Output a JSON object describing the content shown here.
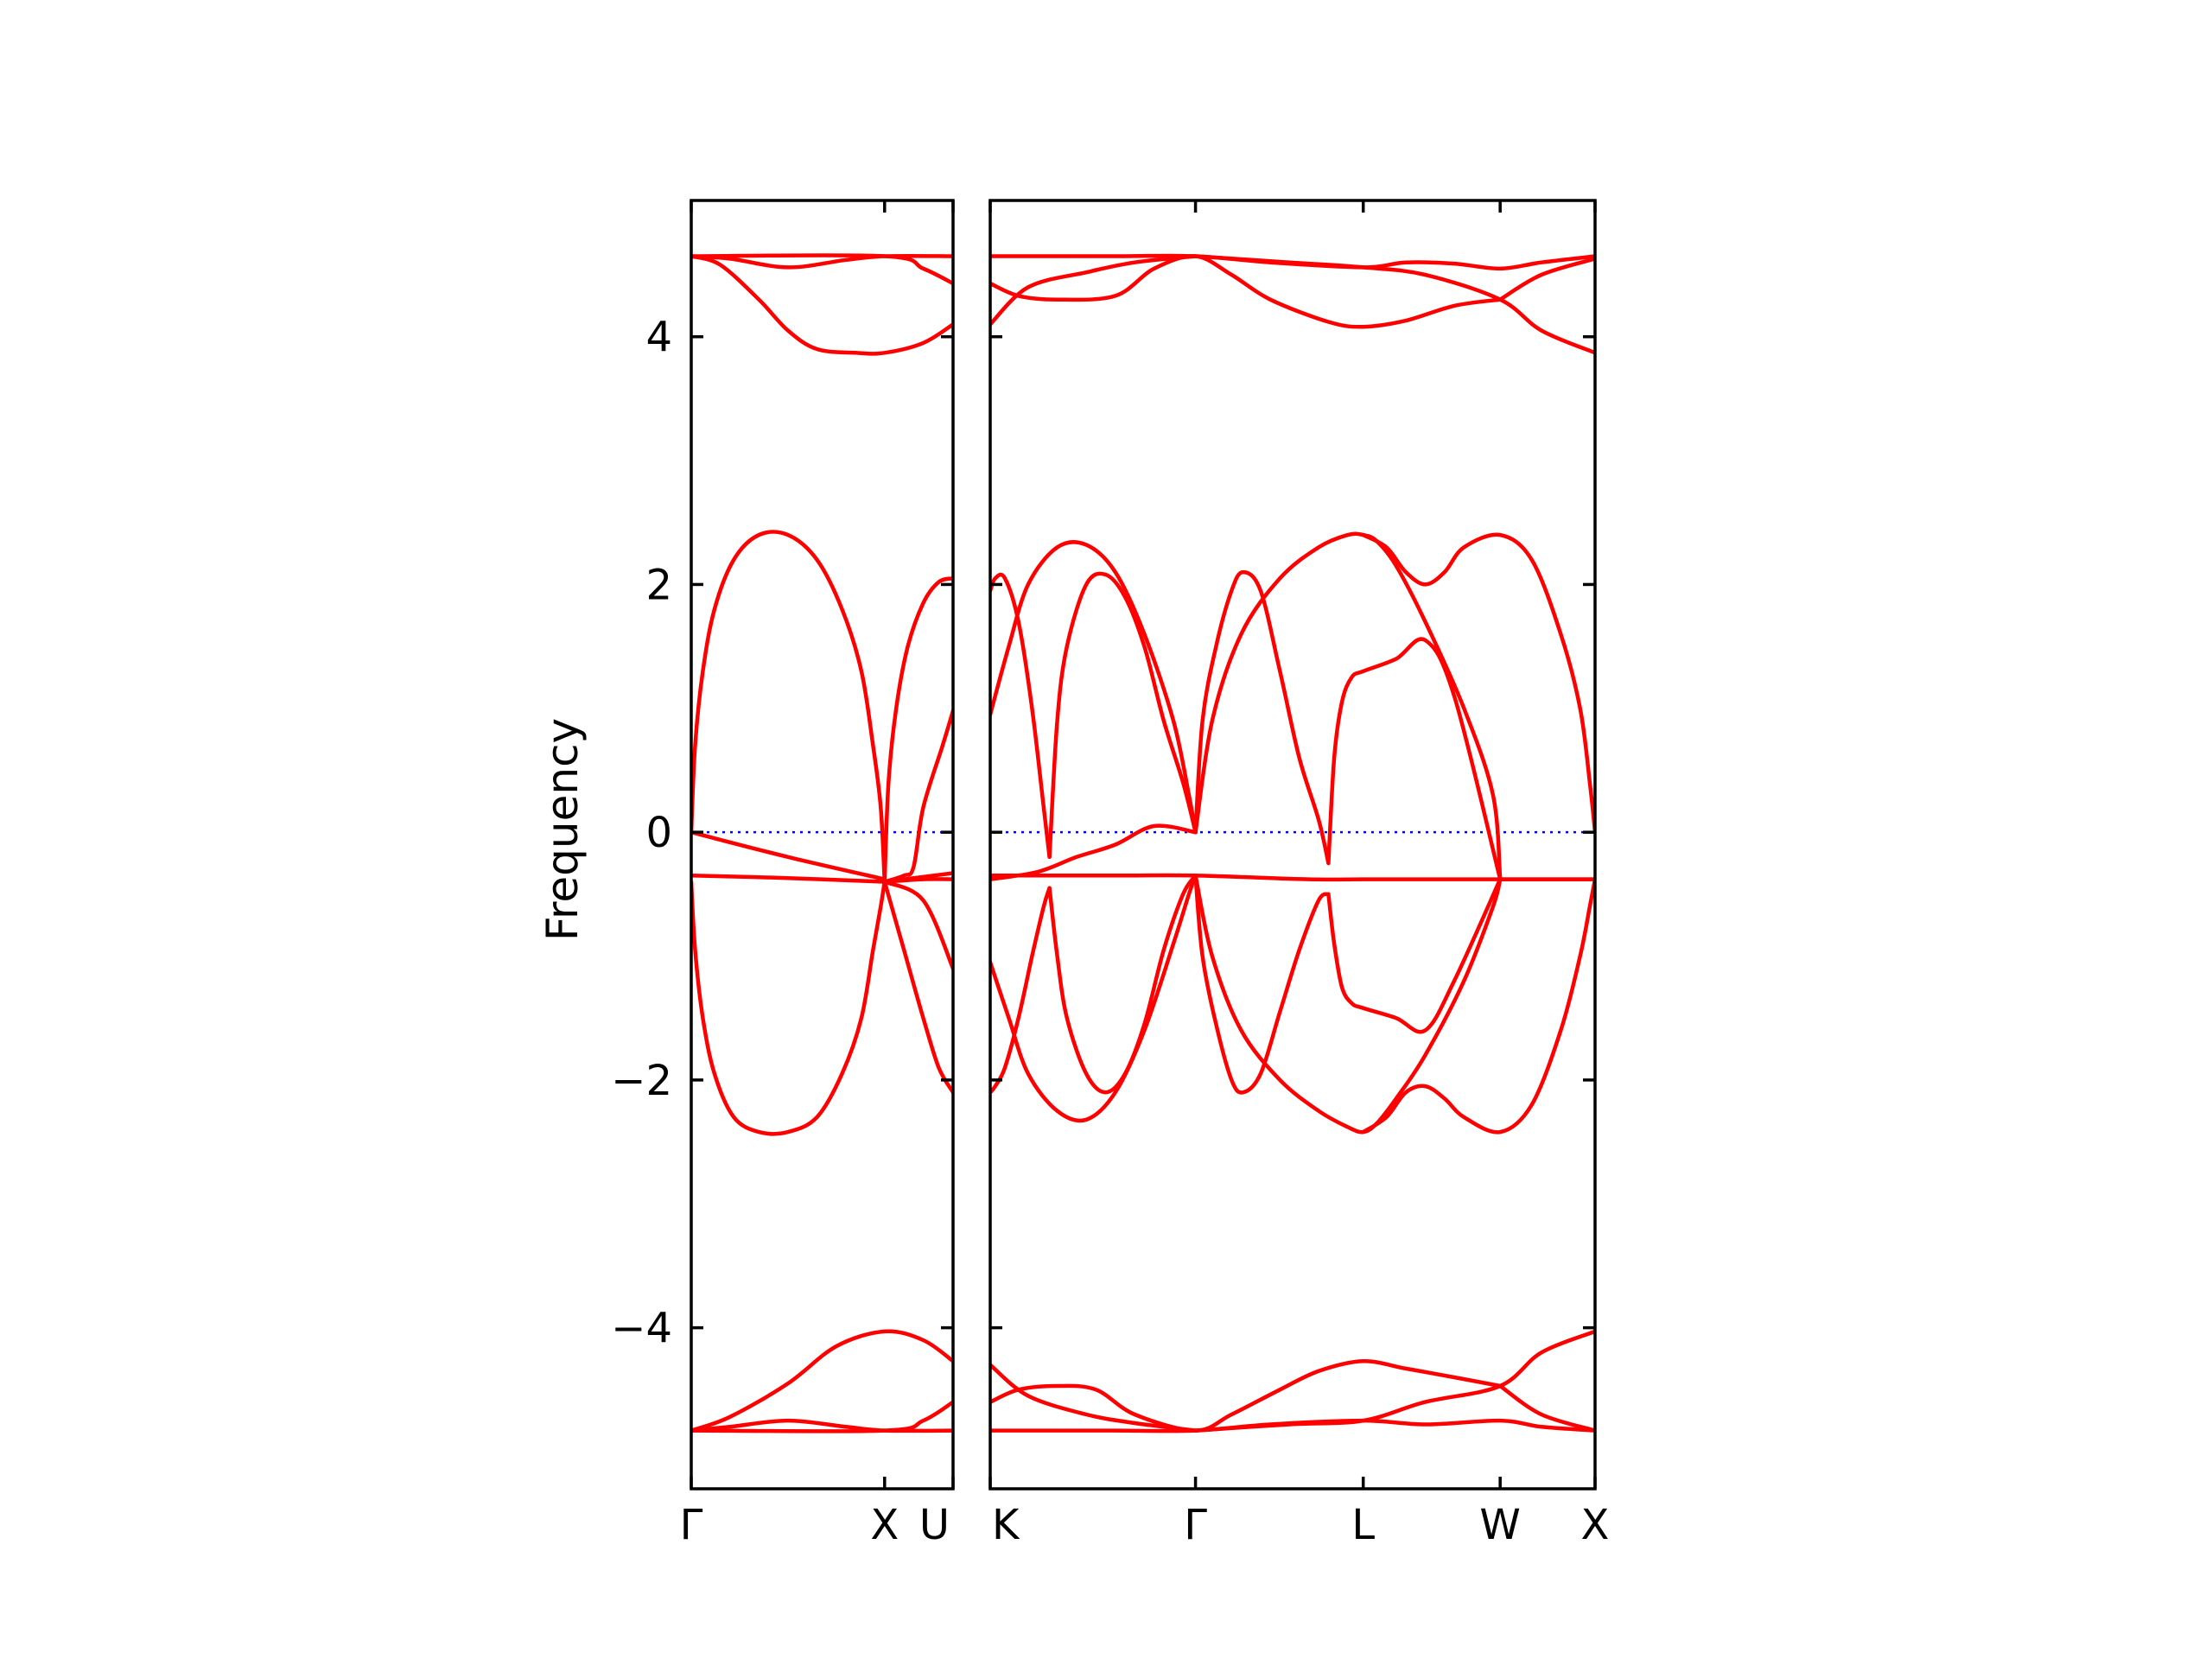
{
  "colors": {
    "band": "#ff0000",
    "zero_line": "#0000ff",
    "axes": "#000000"
  },
  "chart_data": {
    "type": "line",
    "title": "",
    "xlabel": "",
    "ylabel": "Frequency",
    "ylim": [
      -5.3,
      5.1
    ],
    "yticks": [
      -4,
      -2,
      0,
      2,
      4
    ],
    "ytick_labels": [
      "−4",
      "−2",
      "0",
      "2",
      "4"
    ],
    "grid": false,
    "zero_line": {
      "y": 0,
      "style": "dotted"
    },
    "panels": [
      {
        "name": "left",
        "x_range": [
          0,
          1.354
        ],
        "high_symmetry_points": [
          {
            "label": "Γ",
            "x": 0
          },
          {
            "label": "X",
            "x": 1.0
          },
          {
            "label": "U",
            "x": 1.354
          }
        ],
        "bands": [
          {
            "x": [
              0,
              0.2,
              0.5,
              0.8,
              1.0,
              1.354
            ],
            "y": [
              4.65,
              4.63,
              4.56,
              4.62,
              4.65,
              4.65
            ]
          },
          {
            "x": [
              0,
              0.15,
              0.35,
              0.5,
              0.65,
              0.85,
              1.0,
              1.2,
              1.354
            ],
            "y": [
              4.65,
              4.58,
              4.3,
              4.05,
              3.9,
              3.87,
              3.87,
              3.95,
              4.1
            ]
          },
          {
            "x": [
              0,
              1.0,
              1.2,
              1.354
            ],
            "y": [
              4.65,
              4.65,
              4.55,
              4.43
            ]
          },
          {
            "x": [
              0,
              0.02,
              0.06,
              0.12,
              0.22,
              0.35,
              0.5,
              0.65,
              0.78,
              0.88,
              0.94,
              0.98,
              1.0
            ],
            "y": [
              0,
              0.7,
              1.3,
              1.8,
              2.2,
              2.4,
              2.4,
              2.2,
              1.8,
              1.3,
              0.7,
              0.2,
              -0.4
            ]
          },
          {
            "x": [
              0,
              0.02,
              0.06,
              0.12,
              0.22,
              0.35,
              0.5,
              0.65,
              0.78,
              0.88,
              0.94,
              0.98,
              1.0
            ],
            "y": [
              -0.4,
              -0.95,
              -1.5,
              -1.95,
              -2.3,
              -2.42,
              -2.42,
              -2.3,
              -1.95,
              -1.5,
              -0.95,
              -0.6,
              -0.4
            ]
          },
          {
            "x": [
              0,
              0.5,
              1.0
            ],
            "y": [
              -0.35,
              -0.37,
              -0.4
            ]
          },
          {
            "x": [
              0,
              0.5,
              1.0
            ],
            "y": [
              0,
              -0.2,
              -0.38
            ]
          },
          {
            "x": [
              1.0,
              1.02,
              1.06,
              1.12,
              1.2,
              1.28,
              1.354
            ],
            "y": [
              -0.4,
              0.4,
              1.0,
              1.5,
              1.85,
              2.02,
              2.05
            ]
          },
          {
            "x": [
              1.0,
              1.1,
              1.2,
              1.28,
              1.354
            ],
            "y": [
              -0.4,
              -0.95,
              -1.5,
              -1.9,
              -2.1
            ]
          },
          {
            "x": [
              1.0,
              1.1,
              1.15,
              1.2,
              1.3,
              1.354
            ],
            "y": [
              -0.4,
              -0.35,
              -0.28,
              0.2,
              0.7,
              0.98
            ]
          },
          {
            "x": [
              1.0,
              1.2,
              1.354
            ],
            "y": [
              -0.4,
              -0.55,
              -1.1
            ]
          },
          {
            "x": [
              1.0,
              1.2,
              1.354
            ],
            "y": [
              -0.4,
              -0.36,
              -0.33
            ]
          },
          {
            "x": [
              1.0,
              1.2,
              1.354
            ],
            "y": [
              -0.4,
              -0.38,
              -0.38
            ]
          },
          {
            "x": [
              0,
              0.2,
              0.5,
              0.8,
              1.0,
              1.354
            ],
            "y": [
              -4.83,
              -4.8,
              -4.75,
              -4.8,
              -4.83,
              -4.83
            ]
          },
          {
            "x": [
              0,
              0.2,
              0.5,
              0.75,
              1.0,
              1.2,
              1.354
            ],
            "y": [
              -4.83,
              -4.72,
              -4.45,
              -4.15,
              -4.03,
              -4.1,
              -4.27
            ]
          },
          {
            "x": [
              0,
              1.0,
              1.2,
              1.354
            ],
            "y": [
              -4.83,
              -4.83,
              -4.75,
              -4.6
            ]
          }
        ]
      },
      {
        "name": "right",
        "x_range": [
          1.354,
          4.477
        ],
        "high_symmetry_points": [
          {
            "label": "K",
            "x": 1.354
          },
          {
            "label": "Γ",
            "x": 2.414
          },
          {
            "label": "L",
            "x": 3.28
          },
          {
            "label": "W",
            "x": 3.987
          },
          {
            "label": "X",
            "x": 4.477
          }
        ],
        "bands": [
          {
            "x": [
              1.354,
              1.65,
              2.0,
              2.414,
              2.8,
              3.28,
              3.5,
              3.75,
              3.987,
              4.2,
              4.477
            ],
            "y": [
              4.65,
              4.65,
              4.65,
              4.65,
              4.6,
              4.56,
              4.6,
              4.59,
              4.55,
              4.6,
              4.65
            ]
          },
          {
            "x": [
              1.354,
              1.5,
              1.7,
              2.0,
              2.2,
              2.414,
              2.6,
              2.8,
              3.1,
              3.28,
              3.5,
              3.75,
              3.987
            ],
            "y": [
              4.43,
              4.33,
              4.3,
              4.33,
              4.55,
              4.65,
              4.5,
              4.3,
              4.12,
              4.08,
              4.13,
              4.25,
              4.3
            ]
          },
          {
            "x": [
              1.354,
              1.55,
              1.85,
              2.1,
              2.414
            ],
            "y": [
              4.1,
              4.4,
              4.52,
              4.6,
              4.65
            ]
          },
          {
            "x": [
              2.414,
              2.9,
              3.28,
              3.6,
              3.987,
              4.2,
              4.477
            ],
            "y": [
              4.65,
              4.6,
              4.56,
              4.5,
              4.3,
              4.05,
              3.87
            ]
          },
          {
            "x": [
              3.987,
              4.2,
              4.477
            ],
            "y": [
              4.3,
              4.5,
              4.63
            ]
          },
          {
            "x": [
              1.354,
              1.6,
              1.8,
              2.0,
              2.2,
              2.414
            ],
            "y": [
              -0.38,
              -0.32,
              -0.2,
              -0.1,
              0.05,
              0
            ]
          },
          {
            "x": [
              1.354,
              2.0,
              2.414,
              3.0,
              3.28,
              3.987,
              4.477
            ],
            "y": [
              -0.35,
              -0.35,
              -0.35,
              -0.38,
              -0.38,
              -0.38,
              -0.38
            ]
          },
          {
            "x": [
              1.354,
              1.38,
              1.43,
              1.5,
              1.57,
              1.63,
              1.66
            ],
            "y": [
              1.95,
              2.05,
              2.05,
              1.7,
              1.0,
              0.2,
              -0.2
            ]
          },
          {
            "x": [
              1.354,
              1.38,
              1.43,
              1.5,
              1.57,
              1.63,
              1.66
            ],
            "y": [
              -2.1,
              -2.05,
              -1.9,
              -1.5,
              -1.0,
              -0.6,
              -0.45
            ]
          },
          {
            "x": [
              1.354,
              1.45,
              1.55,
              1.7,
              1.85,
              2.0,
              2.15,
              2.3,
              2.38,
              2.414
            ],
            "y": [
              0.95,
              1.5,
              2.0,
              2.3,
              2.32,
              2.1,
              1.6,
              0.9,
              0.3,
              0
            ]
          },
          {
            "x": [
              1.354,
              1.45,
              1.55,
              1.7,
              1.85,
              2.0,
              2.15,
              2.3,
              2.38,
              2.414
            ],
            "y": [
              -1.05,
              -1.5,
              -1.95,
              -2.25,
              -2.32,
              -2.1,
              -1.6,
              -0.9,
              -0.5,
              -0.35
            ]
          },
          {
            "x": [
              1.66,
              1.7,
              1.75,
              1.85,
              1.95,
              2.05,
              2.15,
              2.25,
              2.35,
              2.414
            ],
            "y": [
              -0.2,
              0.9,
              1.5,
              2.0,
              2.08,
              1.9,
              1.5,
              0.9,
              0.4,
              0
            ]
          },
          {
            "x": [
              1.66,
              1.7,
              1.75,
              1.85,
              1.95,
              2.05,
              2.15,
              2.25,
              2.35,
              2.414
            ],
            "y": [
              -0.45,
              -1.0,
              -1.5,
              -1.95,
              -2.1,
              -1.95,
              -1.55,
              -0.95,
              -0.5,
              -0.35
            ]
          },
          {
            "x": [
              2.414,
              2.45,
              2.52,
              2.6,
              2.66,
              2.75,
              2.85,
              2.95,
              3.05,
              3.1
            ],
            "y": [
              0,
              0.9,
              1.5,
              1.95,
              2.1,
              1.95,
              1.3,
              0.6,
              0.1,
              -0.25
            ]
          },
          {
            "x": [
              2.414,
              2.45,
              2.52,
              2.6,
              2.66,
              2.75,
              2.85,
              2.95,
              3.05,
              3.1
            ],
            "y": [
              -0.35,
              -1.0,
              -1.55,
              -2.0,
              -2.1,
              -1.95,
              -1.45,
              -0.95,
              -0.55,
              -0.5
            ]
          },
          {
            "x": [
              2.414,
              2.5,
              2.65,
              2.85,
              3.05,
              3.2,
              3.28,
              3.35,
              3.45,
              3.6,
              3.8,
              3.95,
              3.987
            ],
            "y": [
              0,
              0.9,
              1.6,
              2.05,
              2.3,
              2.4,
              2.4,
              2.35,
              2.15,
              1.7,
              1.0,
              0.3,
              -0.38
            ]
          },
          {
            "x": [
              2.414,
              2.5,
              2.65,
              2.85,
              3.05,
              3.2,
              3.28,
              3.35,
              3.45,
              3.6,
              3.8,
              3.95,
              3.987
            ],
            "y": [
              -0.35,
              -1.0,
              -1.6,
              -2.0,
              -2.25,
              -2.38,
              -2.42,
              -2.35,
              -2.15,
              -1.8,
              -1.2,
              -0.6,
              -0.38
            ]
          },
          {
            "x": [
              3.1,
              3.13,
              3.17,
              3.22,
              3.28,
              3.45,
              3.6,
              3.75,
              3.987
            ],
            "y": [
              -0.25,
              0.6,
              1.05,
              1.25,
              1.3,
              1.4,
              1.55,
              1.1,
              -0.38
            ]
          },
          {
            "x": [
              3.1,
              3.13,
              3.17,
              3.22,
              3.28,
              3.45,
              3.6,
              3.75,
              3.987
            ],
            "y": [
              -0.5,
              -0.9,
              -1.25,
              -1.38,
              -1.42,
              -1.5,
              -1.6,
              -1.2,
              -0.38
            ]
          },
          {
            "x": [
              3.28,
              3.4,
              3.5,
              3.6,
              3.7,
              3.8,
              3.987,
              4.15,
              4.3,
              4.4,
              4.45,
              4.477
            ],
            "y": [
              2.4,
              2.3,
              2.1,
              2.0,
              2.1,
              2.3,
              2.4,
              2.2,
              1.6,
              1.0,
              0.4,
              0
            ]
          },
          {
            "x": [
              3.28,
              3.4,
              3.5,
              3.6,
              3.7,
              3.8,
              3.987,
              4.15,
              4.3,
              4.4,
              4.45,
              4.477
            ],
            "y": [
              -2.42,
              -2.3,
              -2.1,
              -2.05,
              -2.15,
              -2.3,
              -2.42,
              -2.2,
              -1.6,
              -1.0,
              -0.6,
              -0.38
            ]
          },
          {
            "x": [
              3.987,
              4.2,
              4.477
            ],
            "y": [
              -0.38,
              -0.38,
              -0.38
            ]
          },
          {
            "x": [
              1.354,
              1.5,
              1.7,
              2.0,
              2.414,
              2.8,
              3.28,
              3.6,
              3.987,
              4.2,
              4.477
            ],
            "y": [
              -4.83,
              -4.83,
              -4.83,
              -4.83,
              -4.83,
              -4.78,
              -4.75,
              -4.78,
              -4.75,
              -4.8,
              -4.83
            ]
          },
          {
            "x": [
              1.354,
              1.5,
              1.7,
              1.9,
              2.1,
              2.414,
              2.6,
              2.85,
              3.05,
              3.28,
              3.5,
              3.75,
              3.987
            ],
            "y": [
              -4.6,
              -4.5,
              -4.47,
              -4.5,
              -4.7,
              -4.83,
              -4.7,
              -4.5,
              -4.35,
              -4.27,
              -4.33,
              -4.4,
              -4.47
            ]
          },
          {
            "x": [
              1.354,
              1.55,
              1.85,
              2.1,
              2.414
            ],
            "y": [
              -4.3,
              -4.55,
              -4.7,
              -4.77,
              -4.83
            ]
          },
          {
            "x": [
              2.414,
              2.9,
              3.28,
              3.6,
              3.987,
              4.2,
              4.477
            ],
            "y": [
              -4.83,
              -4.78,
              -4.75,
              -4.6,
              -4.47,
              -4.2,
              -4.03
            ]
          },
          {
            "x": [
              3.987,
              4.2,
              4.477
            ],
            "y": [
              -4.47,
              -4.7,
              -4.83
            ]
          }
        ]
      }
    ]
  }
}
